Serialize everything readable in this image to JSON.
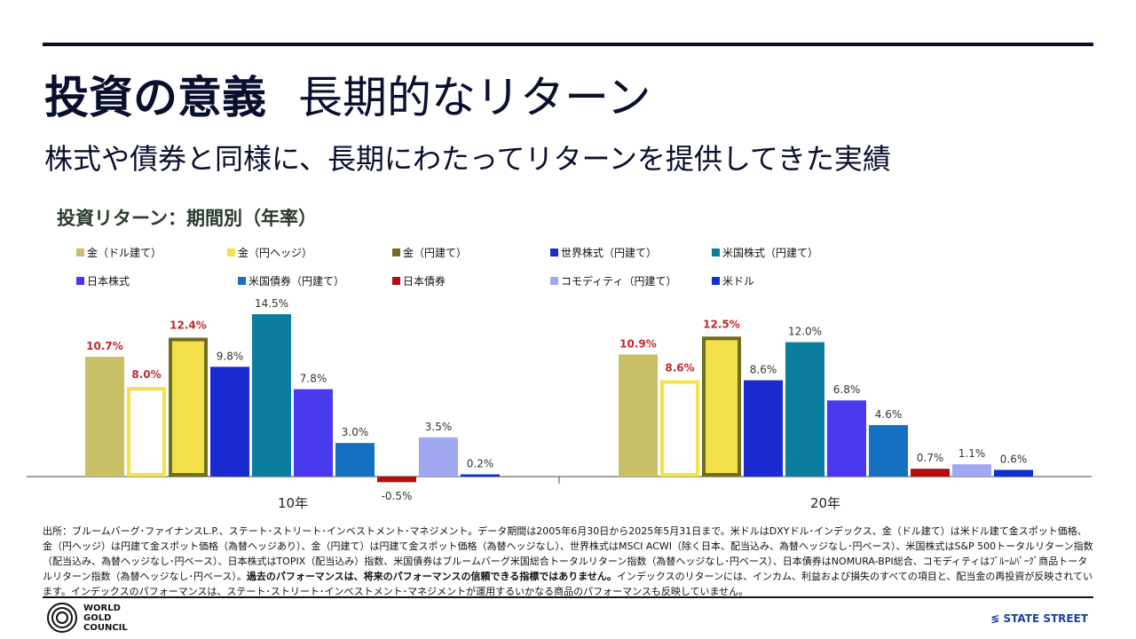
{
  "header": {
    "title_bold": "投資の意義",
    "title": "長期的なリターン",
    "subtitle": "株式や債券と同様に、長期にわたってリターンを提供してきた実績"
  },
  "chart_data": {
    "type": "bar",
    "title": "投資リターン：期間別（年率）",
    "categories": [
      "10年",
      "20年"
    ],
    "ylim": [
      -1,
      15
    ],
    "grid": false,
    "legend_position": "top",
    "series": [
      {
        "name": "金（ドル建て）",
        "values": [
          10.7,
          10.9
        ],
        "color": "#c9bf66",
        "label_color": "#c0282c"
      },
      {
        "name": "金（円ヘッジ）",
        "values": [
          8.0,
          8.6
        ],
        "color": "#ffffff",
        "border": "#f5e14a",
        "label_color": "#c0282c"
      },
      {
        "name": "金（円建て）",
        "values": [
          12.4,
          12.5
        ],
        "color": "#f3e04a",
        "border": "#6e6e1e",
        "label_color": "#c0282c"
      },
      {
        "name": "世界株式（円建て）",
        "values": [
          9.8,
          8.6
        ],
        "color": "#1a2bd0",
        "label_color": "#333333"
      },
      {
        "name": "米国株式（円建て）",
        "values": [
          14.5,
          12.0
        ],
        "color": "#0b7ea0",
        "label_color": "#333333"
      },
      {
        "name": "日本株式",
        "values": [
          7.8,
          6.8
        ],
        "color": "#4838ee",
        "label_color": "#333333"
      },
      {
        "name": "米国債券（円建て）",
        "values": [
          3.0,
          4.6
        ],
        "color": "#1570c2",
        "label_color": "#333333"
      },
      {
        "name": "日本債券",
        "values": [
          -0.5,
          0.7
        ],
        "color": "#b01010",
        "label_color": "#333333"
      },
      {
        "name": "コモディティ（円建て）",
        "values": [
          3.5,
          1.1
        ],
        "color": "#a0a8f2",
        "label_color": "#333333"
      },
      {
        "name": "米ドル",
        "values": [
          0.2,
          0.6
        ],
        "color": "#1030d0",
        "label_color": "#333333"
      }
    ]
  },
  "source": {
    "text": "出所：ブルームバーグ･ファイナンスL.P.、ステート･ストリート･インベストメント･マネジメント。データ期間は2005年6月30日から2025年5月31日まで。米ドルはDXYドル･インデックス、金（ドル建て）は米ドル建て金スポット価格、金（円ヘッジ）は円建て金スポット価格（為替ヘッジあり）、金（円建て）は円建て金スポット価格（為替ヘッジなし）、世界株式はMSCI ACWI（除く日本、配当込み、為替ヘッジなし･円ベース）、米国株式はS&P 500トータルリターン指数（配当込み、為替ヘッジなし･円ベース）、日本株式はTOPIX（配当込み）指数、米国債券はブルームバーグ米国総合トータルリターン指数（為替ヘッジなし･円ベース）、日本債券はNOMURA-BPI総合、コモディティはﾌﾞﾙｰﾑﾊﾞｰｸﾞ商品トータルリターン指数（為替ヘッジなし･円ベース）。",
    "bold": "過去のパフォーマンスは、将来のパフォーマンスの信頼できる指標ではありません。",
    "tail": "インデックスのリターンには、インカム、利益および損失のすべての項目と、配当金の再投資が反映されています。インデックスのパフォーマンスは、ステート･ストリート･インベストメント･マネジメントが運用するいかなる商品のパフォーマンスも反映していません。"
  },
  "footer": {
    "wgc": "WORLD GOLD COUNCIL",
    "wgc_lines": [
      "WORLD",
      "GOLD",
      "COUNCIL"
    ],
    "state_street": "STATE STREET"
  }
}
